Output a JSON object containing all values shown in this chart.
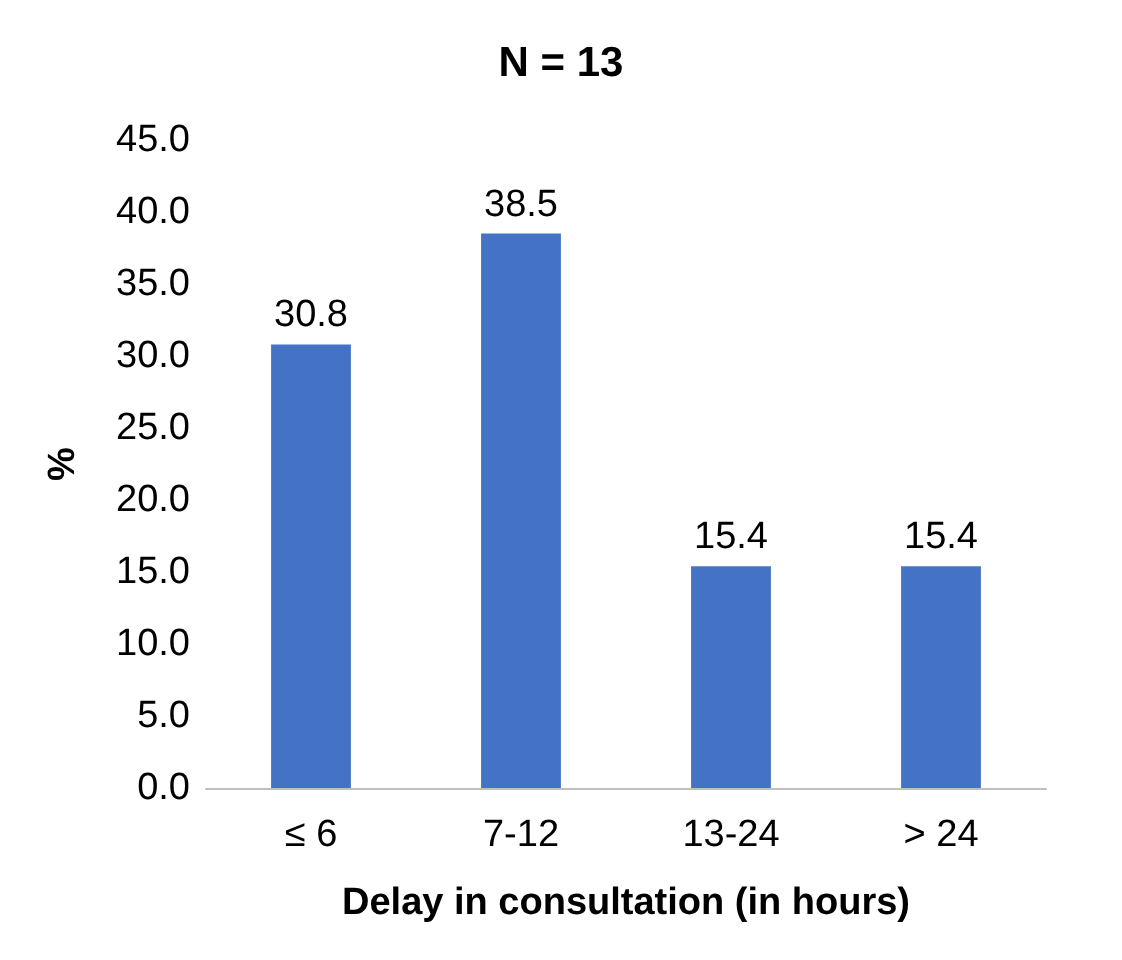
{
  "chart_data": {
    "type": "bar",
    "title": "N = 13",
    "xlabel": "Delay in consultation (in hours)",
    "ylabel": "%",
    "categories": [
      "≤ 6",
      "7-12",
      "13-24",
      "> 24"
    ],
    "values": [
      30.8,
      38.5,
      15.4,
      15.4
    ],
    "color": "#4472c4",
    "ylim": [
      0,
      45
    ],
    "yticks": [
      {
        "value": 0,
        "label": "0.0"
      },
      {
        "value": 5,
        "label": "5.0"
      },
      {
        "value": 10,
        "label": "10.0"
      },
      {
        "value": 15,
        "label": "15.0"
      },
      {
        "value": 20,
        "label": "20.0"
      },
      {
        "value": 25,
        "label": "25.0"
      },
      {
        "value": 30,
        "label": "30.0"
      },
      {
        "value": 35,
        "label": "35.0"
      },
      {
        "value": 40,
        "label": "40.0"
      },
      {
        "value": 45,
        "label": "45.0"
      }
    ],
    "data_labels": true,
    "grid": false
  }
}
